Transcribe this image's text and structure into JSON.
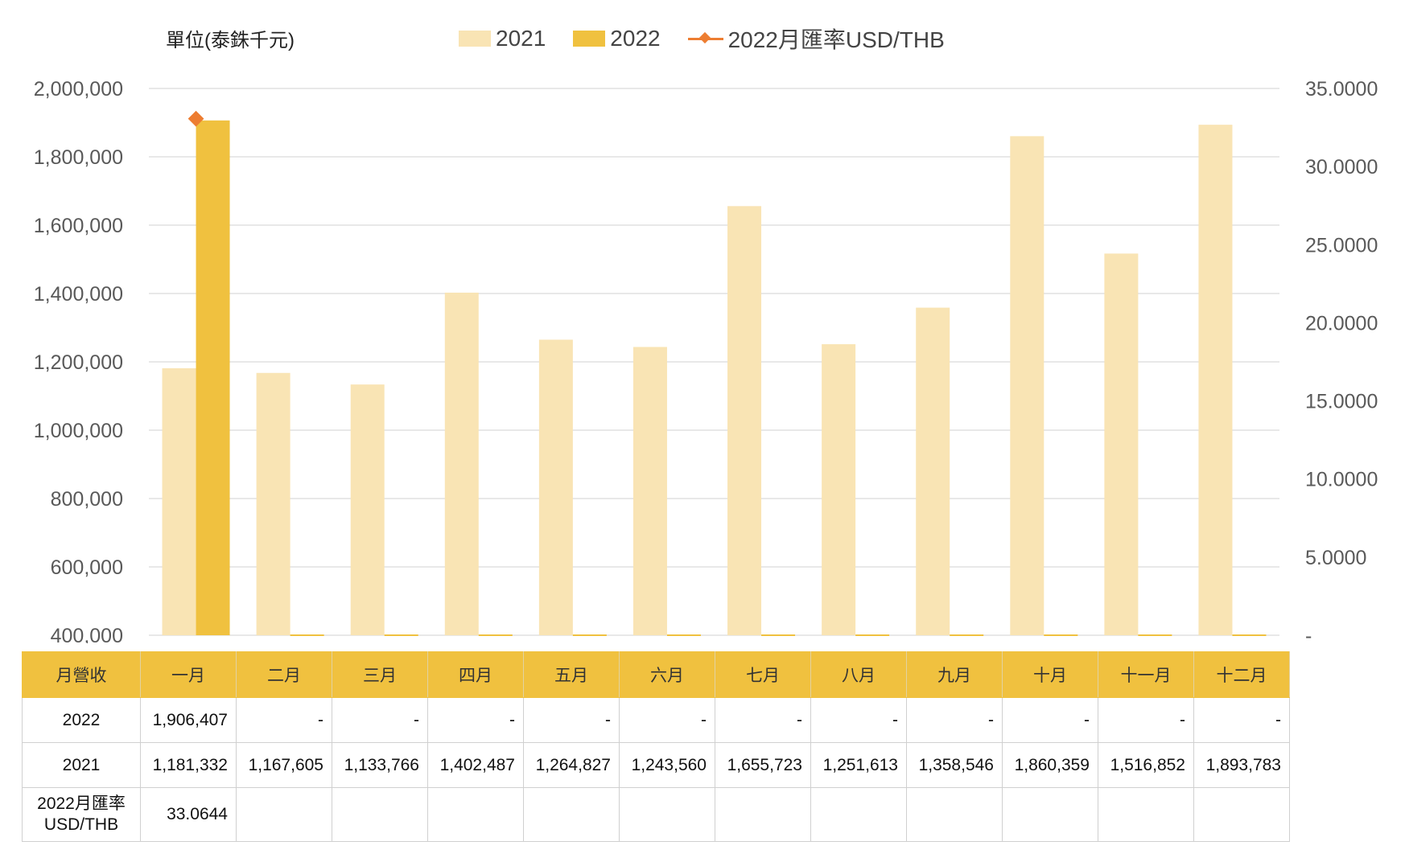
{
  "unit_label": "單位(泰銖千元)",
  "legend": [
    {
      "label": "2021",
      "color": "#F9E4B4",
      "kind": "bar"
    },
    {
      "label": "2022",
      "color": "#F0C13F",
      "kind": "bar"
    },
    {
      "label": "2022月匯率USD/THB",
      "color": "#ED7D31",
      "kind": "line"
    }
  ],
  "chart_data": {
    "type": "bar",
    "categories": [
      "一月",
      "二月",
      "三月",
      "四月",
      "五月",
      "六月",
      "七月",
      "八月",
      "九月",
      "十月",
      "十一月",
      "十二月"
    ],
    "series": [
      {
        "name": "2021",
        "color": "#F9E4B4",
        "axis": "left",
        "values": [
          1181332,
          1167605,
          1133766,
          1402487,
          1264827,
          1243560,
          1655723,
          1251613,
          1358546,
          1860359,
          1516852,
          1893783
        ]
      },
      {
        "name": "2022",
        "color": "#F0C13F",
        "axis": "left",
        "values": [
          1906407,
          null,
          null,
          null,
          null,
          null,
          null,
          null,
          null,
          null,
          null,
          null
        ]
      },
      {
        "name": "2022月匯率USD/THB",
        "type": "line",
        "color": "#ED7D31",
        "axis": "right",
        "values": [
          33.0644,
          null,
          null,
          null,
          null,
          null,
          null,
          null,
          null,
          null,
          null,
          null
        ]
      }
    ],
    "y_left": {
      "min": 400000,
      "max": 2000000,
      "step": 200000,
      "ticks": [
        "400,000",
        "600,000",
        "800,000",
        "1,000,000",
        "1,200,000",
        "1,400,000",
        "1,600,000",
        "1,800,000",
        "2,000,000"
      ]
    },
    "y_right": {
      "min": 0,
      "max": 35,
      "step": 5,
      "ticks": [
        "-",
        "5.0000",
        "10.0000",
        "15.0000",
        "20.0000",
        "25.0000",
        "30.0000",
        "35.0000"
      ]
    },
    "grid": true,
    "legend_position": "top"
  },
  "table": {
    "header_label": "月營收",
    "rows": [
      {
        "label": "2022",
        "cells": [
          "1,906,407",
          "-",
          "-",
          "-",
          "-",
          "-",
          "-",
          "-",
          "-",
          "-",
          "-",
          "-"
        ]
      },
      {
        "label": "2021",
        "cells": [
          "1,181,332",
          "1,167,605",
          "1,133,766",
          "1,402,487",
          "1,264,827",
          "1,243,560",
          "1,655,723",
          "1,251,613",
          "1,358,546",
          "1,860,359",
          "1,516,852",
          "1,893,783"
        ]
      },
      {
        "label": "2022月匯率\nUSD/THB",
        "label_lines": [
          "2022月匯率",
          "USD/THB"
        ],
        "cells": [
          "33.0644",
          "",
          "",
          "",
          "",
          "",
          "",
          "",
          "",
          "",
          "",
          ""
        ]
      }
    ]
  }
}
